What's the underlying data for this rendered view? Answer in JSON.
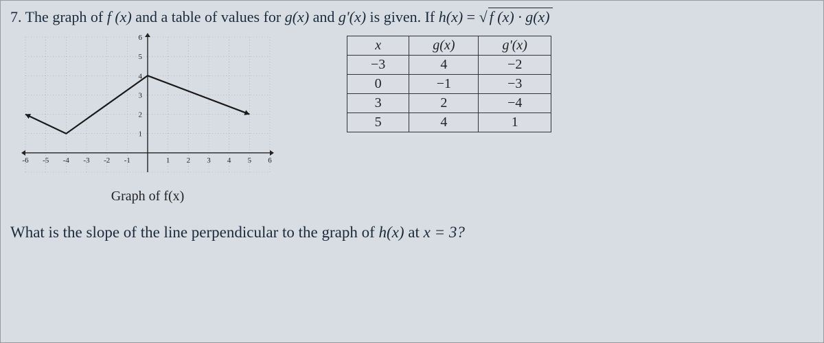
{
  "problem": {
    "number": "7.",
    "line1_prefix": "The graph of ",
    "fx": "f (x)",
    "line1_mid1": " and a table of values for ",
    "gx": "g(x)",
    "line1_mid2": " and ",
    "gpx": "g'(x)",
    "line1_mid3": " is given. If ",
    "hx": "h(x)",
    "eq": " = ",
    "radical": "√",
    "under_root": "f (x) · g(x)"
  },
  "graph": {
    "caption": "Graph of f(x)",
    "xmin": -6,
    "xmax": 6,
    "ymin": -1,
    "ymax": 6,
    "xticks": [
      -6,
      -5,
      -4,
      -3,
      -2,
      -1,
      1,
      2,
      3,
      4,
      5,
      6
    ],
    "yticks": [
      1,
      2,
      3,
      4,
      5,
      6
    ],
    "grid_color": "#9aa4b0",
    "axis_color": "#222",
    "poly_color": "#1a1a1a",
    "f_vertices": [
      [
        -6,
        2
      ],
      [
        -4,
        1
      ],
      [
        0,
        4
      ],
      [
        5,
        2
      ]
    ],
    "arrow_left": true,
    "arrow_right": true
  },
  "table": {
    "headers": [
      "x",
      "g(x)",
      "g'(x)"
    ],
    "rows": [
      [
        "−3",
        "4",
        "−2"
      ],
      [
        "0",
        "−1",
        "−3"
      ],
      [
        "3",
        "2",
        "−4"
      ],
      [
        "5",
        "4",
        "1"
      ]
    ]
  },
  "question": {
    "prefix": "What is the slope of the line perpendicular to the graph of ",
    "hx": "h(x)",
    "mid": " at ",
    "xval": "x = 3?"
  }
}
